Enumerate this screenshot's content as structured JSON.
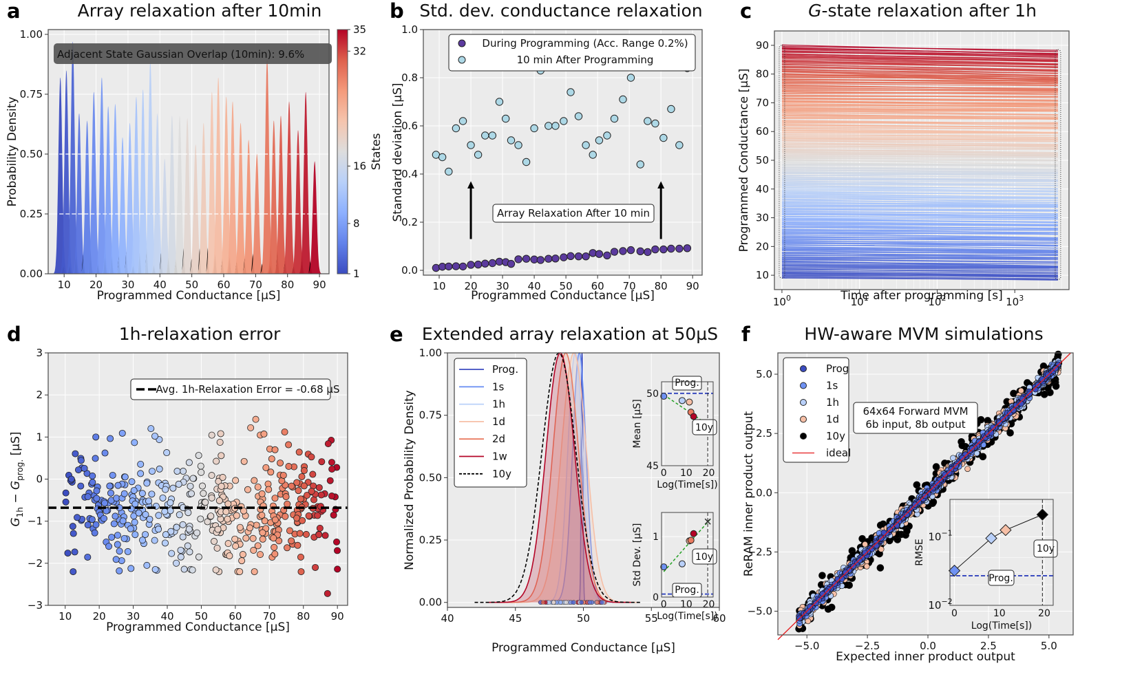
{
  "figure": {
    "panels": [
      "a",
      "b",
      "c",
      "d",
      "e",
      "f"
    ]
  },
  "chart_data": [
    {
      "id": "a",
      "letter": "a",
      "type": "area",
      "title": "Array relaxation after 10min",
      "xlabel": "Programmed Conductance [µS]",
      "ylabel": "Probability Density",
      "xlim": [
        5,
        93
      ],
      "ylim": [
        0,
        1.02
      ],
      "xticks": [
        10,
        20,
        30,
        40,
        50,
        60,
        70,
        80,
        90
      ],
      "yticks": [
        "0.00",
        "0.25",
        "0.50",
        "0.75",
        "1.00"
      ],
      "annotation": "Adjacent State Gaussian Overlap (10min): 9.6%",
      "colorbar": {
        "label": "States",
        "ticks": [
          "1",
          "8",
          "16",
          "32",
          "35"
        ],
        "tick_values": [
          1,
          8,
          16,
          32,
          35
        ],
        "range": [
          1,
          35
        ],
        "cmap": "coolwarm"
      },
      "state_centers": [
        8.8,
        10.7,
        12.7,
        14.7,
        17.2,
        19.3,
        21.8,
        23.8,
        26.0,
        28.3,
        30.6,
        32.6,
        34.7,
        37.0,
        39.2,
        41.5,
        43.8,
        46.2,
        48.6,
        51.2,
        53.7,
        56.3,
        58.3,
        60.8,
        62.8,
        65.3,
        67.8,
        70.4,
        73.6,
        75.7,
        77.9,
        80.5,
        83.3,
        85.7,
        88.5
      ],
      "state_peaks": [
        0.82,
        0.85,
        0.97,
        0.67,
        0.64,
        0.76,
        0.82,
        0.7,
        0.71,
        0.57,
        0.63,
        0.74,
        0.77,
        0.89,
        0.67,
        0.48,
        0.66,
        0.66,
        0.65,
        0.54,
        0.63,
        0.76,
        0.82,
        0.74,
        0.72,
        0.63,
        0.56,
        0.5,
        0.9,
        0.64,
        0.66,
        0.72,
        0.6,
        0.76,
        0.47
      ],
      "overlap_percent": 9.6
    },
    {
      "id": "b",
      "letter": "b",
      "type": "scatter",
      "title": "Std. dev. conductance relaxation",
      "xlabel": "Programmed Conductance [µS]",
      "ylabel": "Standard deviation [µS]",
      "xlim": [
        5,
        93
      ],
      "ylim": [
        -0.02,
        1.0
      ],
      "xticks": [
        10,
        20,
        30,
        40,
        50,
        60,
        70,
        80,
        90
      ],
      "yticks": [
        "0.0",
        "0.2",
        "0.4",
        "0.6",
        "0.8",
        "1.0"
      ],
      "legend_position": "top",
      "annotation": "Array Relaxation After 10 min",
      "arrows_at_x": [
        20,
        80
      ],
      "series": [
        {
          "name": "During Programming (Acc. Range 0.2%)",
          "color": "#5b3a9e",
          "x": [
            9,
            11,
            13,
            15.3,
            17.5,
            20,
            22.3,
            24.5,
            26.8,
            29,
            31,
            32.7,
            35,
            37.5,
            40,
            42,
            44.5,
            46.7,
            49.3,
            51.5,
            54,
            56.3,
            58.5,
            60.5,
            63,
            65.3,
            68,
            70.5,
            73.5,
            75.8,
            78.2,
            80.8,
            83.2,
            85.8,
            88.3
          ],
          "y": [
            0.01,
            0.015,
            0.016,
            0.017,
            0.016,
            0.023,
            0.024,
            0.028,
            0.03,
            0.036,
            0.034,
            0.027,
            0.046,
            0.048,
            0.045,
            0.043,
            0.048,
            0.049,
            0.054,
            0.059,
            0.058,
            0.058,
            0.072,
            0.068,
            0.062,
            0.077,
            0.08,
            0.084,
            0.079,
            0.076,
            0.087,
            0.087,
            0.09,
            0.09,
            0.092
          ]
        },
        {
          "name": "10 min After Programming",
          "color": "#add8e6",
          "x": [
            9,
            11,
            13,
            15.3,
            17.5,
            20,
            22.3,
            24.5,
            26.8,
            29,
            31,
            32.7,
            35,
            37.5,
            40,
            42,
            44.5,
            46.7,
            49.3,
            51.5,
            54,
            56.3,
            58.5,
            60.5,
            63,
            65.3,
            68,
            70.5,
            73.5,
            75.8,
            78.2,
            80.8,
            83.2,
            85.8,
            88.3
          ],
          "y": [
            0.48,
            0.47,
            0.41,
            0.59,
            0.62,
            0.52,
            0.48,
            0.56,
            0.56,
            0.7,
            0.63,
            0.54,
            0.52,
            0.45,
            0.59,
            0.83,
            0.6,
            0.6,
            0.62,
            0.74,
            0.64,
            0.52,
            0.48,
            0.54,
            0.56,
            0.63,
            0.71,
            0.8,
            0.44,
            0.62,
            0.61,
            0.55,
            0.67,
            0.52,
            0.84
          ]
        }
      ]
    },
    {
      "id": "c",
      "letter": "c",
      "type": "line",
      "title_prefix": "G",
      "title": "-state relaxation after 1h",
      "xlabel": "Time after programming [s]",
      "ylabel": "Programmed Conductance [µS]",
      "xscale": "log",
      "xlim": [
        0.8,
        5000
      ],
      "ylim": [
        5,
        95
      ],
      "xticks": [
        "10^0",
        "10^1",
        "10^2",
        "10^3"
      ],
      "yticks": [
        10,
        20,
        30,
        40,
        50,
        60,
        70,
        80,
        90
      ],
      "x": [
        1,
        3600
      ],
      "start_range": [
        9,
        90
      ],
      "end_range": [
        9,
        88
      ],
      "avg_drift": -0.68,
      "cmap": "coolwarm"
    },
    {
      "id": "d",
      "letter": "d",
      "type": "scatter",
      "title": "1h-relaxation error",
      "xlabel": "Programmed Conductance [µS]",
      "ylabel": "G_1h − G_prog. [µS]",
      "xlim": [
        5,
        93
      ],
      "ylim": [
        -3,
        3
      ],
      "xticks": [
        10,
        20,
        30,
        40,
        50,
        60,
        70,
        80,
        90
      ],
      "yticks": [
        "−3",
        "−2",
        "−1",
        "0",
        "1",
        "2",
        "3"
      ],
      "legend_position": "top",
      "hline": {
        "label": "Avg. 1h-Relaxation Error = -0.68 µS",
        "value": -0.68
      },
      "points_summary": {
        "x_range": [
          10,
          90
        ],
        "y_range": [
          -2.75,
          2.2
        ],
        "count_approx": 460
      },
      "notable_points": [
        {
          "x": 64.5,
          "y": 2.2
        },
        {
          "x": 66,
          "y": 1.42
        },
        {
          "x": 64.5,
          "y": 1.22
        },
        {
          "x": 74.5,
          "y": 1.12
        },
        {
          "x": 35.2,
          "y": 1.2
        },
        {
          "x": 26.8,
          "y": 1.09
        },
        {
          "x": 55.7,
          "y": 1.08
        },
        {
          "x": 19,
          "y": 1.0
        },
        {
          "x": 87.3,
          "y": 0.84
        },
        {
          "x": 87.1,
          "y": -2.72
        },
        {
          "x": 90,
          "y": -2.14
        },
        {
          "x": 47.4,
          "y": -2.16
        },
        {
          "x": 34,
          "y": -2.05
        },
        {
          "x": 83.5,
          "y": -2.1
        }
      ]
    },
    {
      "id": "e",
      "letter": "e",
      "type": "line",
      "title": "Extended array relaxation at 50µS",
      "xlabel": "Programmed Conductance [µS]",
      "ylabel": "Normalized Probability Density",
      "xlim": [
        40,
        60
      ],
      "ylim": [
        -0.02,
        1.0
      ],
      "xticks": [
        40,
        45,
        50,
        55,
        60
      ],
      "yticks": [
        "0.00",
        "0.25",
        "0.50",
        "0.75",
        "1.00"
      ],
      "legend_position": "top-left",
      "series": [
        {
          "name": "Prog.",
          "color": "#3b4cc0",
          "mean": 49.9,
          "std": 0.06,
          "dash": false
        },
        {
          "name": "1s",
          "color": "#6f92f3",
          "mean": 49.7,
          "std": 0.5,
          "dash": false
        },
        {
          "name": "1h",
          "color": "#b9d0f9",
          "mean": 49.4,
          "std": 0.55,
          "dash": false
        },
        {
          "name": "1d",
          "color": "#f6bfa6",
          "mean": 49.3,
          "std": 0.93,
          "dash": false
        },
        {
          "name": "2d",
          "color": "#ea7b60",
          "mean": 48.7,
          "std": 0.95,
          "dash": false
        },
        {
          "name": "1w",
          "color": "#b40426",
          "mean": 48.3,
          "std": 1.05,
          "dash": false
        },
        {
          "name": "10y",
          "color": "#000000",
          "mean": 48.2,
          "std": 1.25,
          "dash": true
        }
      ],
      "insets": [
        {
          "ylabel": "Mean [µS]",
          "xlabel": "Log(Time[s])",
          "xlim": [
            -1,
            22
          ],
          "ylim": [
            45,
            51
          ],
          "xticks": [
            0,
            10,
            20
          ],
          "yticks": [
            "45",
            "50"
          ],
          "prog_line": 50,
          "prog_label": "Prog.",
          "vline_x": 19.6,
          "vline_label": "10y",
          "points": [
            {
              "x": 0,
              "y": 49.8,
              "color": "#6f92f3"
            },
            {
              "x": 8.2,
              "y": 49.5,
              "color": "#b9d0f9"
            },
            {
              "x": 11.4,
              "y": 49.4,
              "color": "#f6bfa6"
            },
            {
              "x": 12.1,
              "y": 48.7,
              "color": "#ea7b60"
            },
            {
              "x": 13.3,
              "y": 48.4,
              "color": "#b40426"
            }
          ],
          "fit": {
            "x": [
              0,
              21
            ],
            "y": [
              49.9,
              47.7
            ]
          },
          "extrapolated": {
            "x": 19.6,
            "y": 47.8
          }
        },
        {
          "ylabel": "Std Dev. [µS]",
          "xlabel": "Log(Time[s])",
          "xlim": [
            -1,
            22
          ],
          "ylim": [
            0,
            1.4
          ],
          "xticks": [
            0,
            10,
            20
          ],
          "yticks": [
            "0",
            "1"
          ],
          "prog_line": 0.05,
          "prog_label": "Prog.",
          "vline_x": 19.6,
          "vline_label": "10y",
          "points": [
            {
              "x": 0,
              "y": 0.5,
              "color": "#6f92f3"
            },
            {
              "x": 8.2,
              "y": 0.55,
              "color": "#b9d0f9"
            },
            {
              "x": 11.4,
              "y": 0.93,
              "color": "#f6bfa6"
            },
            {
              "x": 12.1,
              "y": 0.94,
              "color": "#ea7b60"
            },
            {
              "x": 13.3,
              "y": 1.05,
              "color": "#b40426"
            }
          ],
          "fit": {
            "x": [
              0,
              21
            ],
            "y": [
              0.42,
              1.3
            ]
          },
          "extrapolated": {
            "x": 19.6,
            "y": 1.25
          }
        }
      ]
    },
    {
      "id": "f",
      "letter": "f",
      "type": "scatter",
      "title": "HW-aware MVM simulations",
      "xlabel": "Expected inner product output",
      "ylabel": "ReRAM inner product output",
      "xlim": [
        -6.2,
        6.0
      ],
      "ylim": [
        -6.0,
        5.9
      ],
      "xticks": [
        "−5.0",
        "−2.5",
        "0.0",
        "2.5",
        "5.0"
      ],
      "xtick_values": [
        -5,
        -2.5,
        0,
        2.5,
        5
      ],
      "yticks": [
        "−5.0",
        "−2.5",
        "0.0",
        "2.5",
        "5.0"
      ],
      "ytick_values": [
        -5,
        -2.5,
        0,
        2.5,
        5
      ],
      "legend_position": "top-left",
      "annotation": [
        "64x64 Forward MVM",
        "6b input, 8b output"
      ],
      "series": [
        {
          "name": "Prog",
          "color": "#3b4cc0",
          "spread": 0.05
        },
        {
          "name": "1s",
          "color": "#6f92f3",
          "spread": 0.1
        },
        {
          "name": "1h",
          "color": "#b9d0f9",
          "spread": 0.15
        },
        {
          "name": "1d",
          "color": "#f6bfa6",
          "spread": 0.2
        },
        {
          "name": "10y",
          "color": "#000000",
          "spread": 0.35
        },
        {
          "name": "ideal",
          "color": "#e41a1c",
          "line": true
        }
      ],
      "inset": {
        "ylabel": "RMSE",
        "xlabel": "Log(Time[s])",
        "yscale": "log",
        "ylim": [
          0.01,
          0.35
        ],
        "xlim": [
          -1,
          22
        ],
        "xticks": [
          0,
          10,
          20
        ],
        "yticks": [
          "10^-2",
          "10^-1"
        ],
        "prog_line": 0.027,
        "prog_label": "Prog.",
        "vline_x": 19.6,
        "vline_label": "10y",
        "points": [
          {
            "x": 0,
            "y": 0.032,
            "color": "#6f92f3"
          },
          {
            "x": 8.2,
            "y": 0.095,
            "color": "#b9d0f9"
          },
          {
            "x": 11.4,
            "y": 0.125,
            "color": "#f6bfa6"
          },
          {
            "x": 19.6,
            "y": 0.21,
            "color": "#000000"
          }
        ]
      }
    }
  ]
}
